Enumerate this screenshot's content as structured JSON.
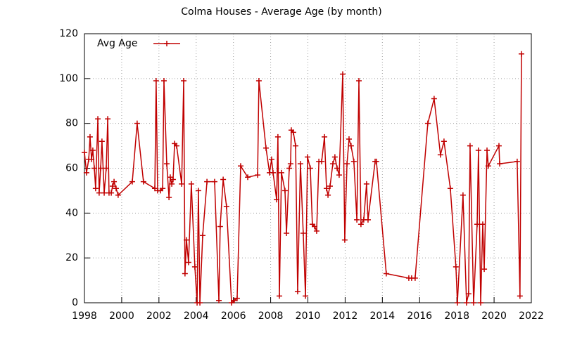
{
  "chart_data": {
    "type": "line",
    "title": "Colma Houses - Average Age (by month)",
    "x": [
      1998.0,
      1998.11,
      1998.23,
      1998.3,
      1998.38,
      1998.45,
      1998.53,
      1998.6,
      1998.72,
      1998.79,
      1998.87,
      1998.94,
      1999.06,
      1999.17,
      1999.25,
      1999.32,
      1999.44,
      1999.51,
      1999.59,
      1999.7,
      1999.81,
      2000.57,
      2000.83,
      2001.17,
      2001.78,
      2001.85,
      2001.93,
      2002.08,
      2002.2,
      2002.27,
      2002.42,
      2002.54,
      2002.61,
      2002.69,
      2002.76,
      2002.84,
      2002.95,
      2003.22,
      2003.33,
      2003.4,
      2003.48,
      2003.59,
      2003.74,
      2003.93,
      2004.05,
      2004.12,
      2004.2,
      2004.35,
      2004.58,
      2004.99,
      2005.22,
      2005.29,
      2005.45,
      2005.63,
      2005.9,
      2006.05,
      2006.2,
      2006.39,
      2006.77,
      2007.3,
      2007.37,
      2007.75,
      2007.94,
      2008.05,
      2008.13,
      2008.32,
      2008.39,
      2008.47,
      2008.58,
      2008.77,
      2008.85,
      2009.0,
      2009.07,
      2009.11,
      2009.22,
      2009.34,
      2009.45,
      2009.6,
      2009.75,
      2009.87,
      2009.98,
      2010.13,
      2010.24,
      2010.36,
      2010.47,
      2010.59,
      2010.74,
      2010.89,
      2011.0,
      2011.08,
      2011.19,
      2011.34,
      2011.45,
      2011.57,
      2011.68,
      2011.87,
      2011.98,
      2012.1,
      2012.21,
      2012.32,
      2012.47,
      2012.63,
      2012.74,
      2012.85,
      2013.0,
      2013.15,
      2013.23,
      2013.61,
      2013.68,
      2014.21,
      2015.42,
      2015.57,
      2015.76,
      2016.44,
      2016.78,
      2017.12,
      2017.31,
      2017.65,
      2017.95,
      2018.03,
      2018.33,
      2018.52,
      2018.63,
      2018.71,
      2018.9,
      2019.09,
      2019.16,
      2019.28,
      2019.39,
      2019.47,
      2019.62,
      2019.69,
      2020.26,
      2020.3,
      2021.24,
      2021.39,
      2021.47
    ],
    "series": [
      {
        "name": "Avg Age",
        "color": "#c00000",
        "values": [
          67,
          58,
          64,
          74,
          64,
          68,
          60,
          51,
          82,
          49,
          60,
          72,
          49,
          60,
          82,
          49,
          49,
          52,
          54,
          51,
          48,
          54,
          80,
          54,
          51,
          99,
          50,
          50,
          51,
          99,
          62,
          47,
          56,
          53,
          55,
          71,
          70,
          53,
          99,
          13,
          28,
          18,
          53,
          16,
          0,
          50,
          0,
          30,
          54,
          54,
          1,
          34,
          55,
          43,
          0,
          1,
          2,
          61,
          56,
          57,
          99,
          69,
          58,
          64,
          58,
          46,
          74,
          3,
          58,
          50,
          31,
          60,
          62,
          77,
          76,
          70,
          5,
          62,
          31,
          3,
          65,
          60,
          35,
          34,
          32,
          63,
          63,
          74,
          51,
          48,
          52,
          62,
          65,
          60,
          57,
          102,
          28,
          62,
          73,
          70,
          63,
          37,
          99,
          35,
          37,
          53,
          37,
          63,
          63,
          13,
          11,
          11,
          11,
          80,
          91,
          66,
          72,
          51,
          16,
          0,
          48,
          0,
          4,
          70,
          0,
          35,
          68,
          0,
          35,
          15,
          68,
          61,
          70,
          62,
          63,
          3,
          111
        ]
      }
    ],
    "xlim": [
      1998,
      2022
    ],
    "xticks": [
      1998,
      2000,
      2002,
      2004,
      2006,
      2008,
      2010,
      2012,
      2014,
      2016,
      2018,
      2020,
      2022
    ],
    "ylim": [
      0,
      120
    ],
    "yticks": [
      0,
      20,
      40,
      60,
      80,
      100,
      120
    ],
    "grid": true,
    "legend": "upper-left"
  }
}
